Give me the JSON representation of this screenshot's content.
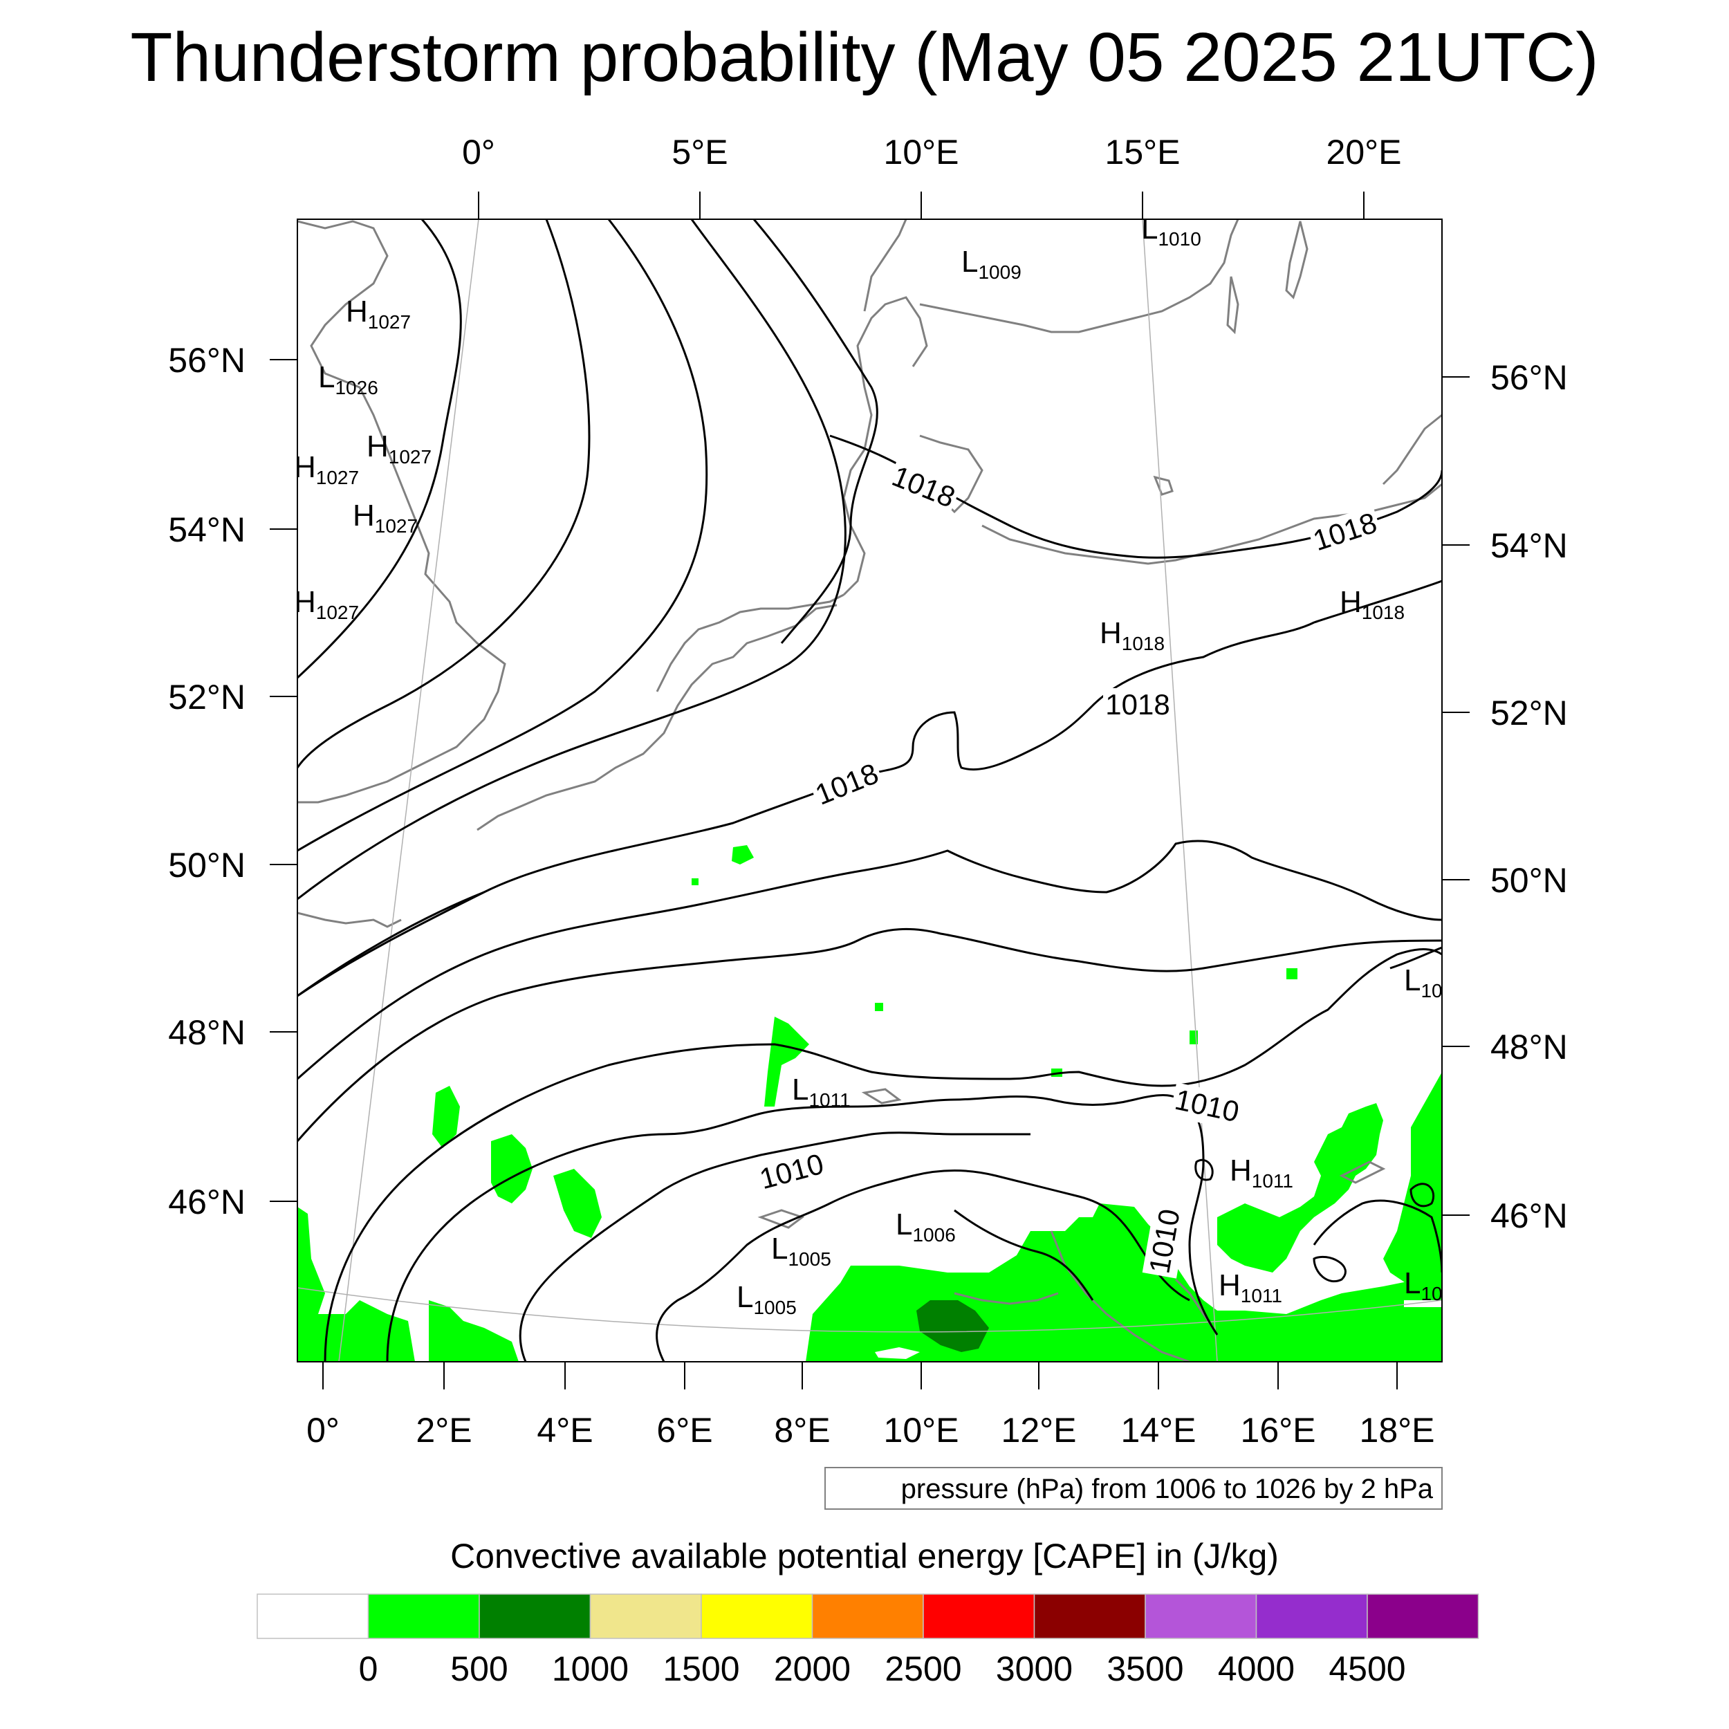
{
  "title": "Thunderstorm probability (May 05 2025 21UTC)",
  "top_lon_labels": [
    "0°",
    "5°E",
    "10°E",
    "15°E",
    "20°E"
  ],
  "bottom_lon_labels": [
    "0°",
    "2°E",
    "4°E",
    "6°E",
    "8°E",
    "10°E",
    "12°E",
    "14°E",
    "16°E",
    "18°E"
  ],
  "left_lat_labels": [
    "56°N",
    "54°N",
    "52°N",
    "50°N",
    "48°N",
    "46°N"
  ],
  "right_lat_labels": [
    "56°N",
    "54°N",
    "52°N",
    "50°N",
    "48°N",
    "46°N"
  ],
  "contour_labels": [
    "1018",
    "1018",
    "1018",
    "1018",
    "1010",
    "1010",
    "1010"
  ],
  "pressure_centers": [
    {
      "letter": "H",
      "value": "1027"
    },
    {
      "letter": "L",
      "value": "1026"
    },
    {
      "letter": "H",
      "value": "1027"
    },
    {
      "letter": "H",
      "value": "1027"
    },
    {
      "letter": "H",
      "value": "1027"
    },
    {
      "letter": "H",
      "value": "1027"
    },
    {
      "letter": "L",
      "value": "1009"
    },
    {
      "letter": "L",
      "value": "1010"
    },
    {
      "letter": "H",
      "value": "1018"
    },
    {
      "letter": "H",
      "value": "1018"
    },
    {
      "letter": "L",
      "value": "1011"
    },
    {
      "letter": "L",
      "value": "1006"
    },
    {
      "letter": "L",
      "value": "1005"
    },
    {
      "letter": "L",
      "value": "1005"
    },
    {
      "letter": "H",
      "value": "1011"
    },
    {
      "letter": "H",
      "value": "1011"
    },
    {
      "letter": "L",
      "value": "10"
    },
    {
      "letter": "L",
      "value": "10"
    }
  ],
  "contour_note": "pressure (hPa) from 1006 to 1026 by 2 hPa",
  "colorbar": {
    "title": "Convective available potential energy [CAPE] in (J/kg)",
    "colors": [
      "#ffffff",
      "#00ff00",
      "#008000",
      "#f0e68c",
      "#ffff00",
      "#ff8000",
      "#ff0000",
      "#8b0000",
      "#b455d9",
      "#952dcd",
      "#8b008b"
    ],
    "labels": [
      "0",
      "500",
      "1000",
      "1500",
      "2000",
      "2500",
      "3000",
      "3500",
      "4000",
      "4500"
    ]
  },
  "colors": {
    "coastline": "#808080",
    "isobar": "#000000",
    "cape_low": "#00ff00",
    "cape_mid": "#008000"
  }
}
